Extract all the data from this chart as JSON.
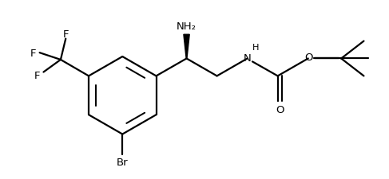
{
  "background_color": "#ffffff",
  "line_color": "#000000",
  "line_width": 1.6,
  "font_size": 9.5,
  "fig_width": 4.87,
  "fig_height": 2.26,
  "dpi": 100,
  "xlim": [
    0,
    9.7
  ],
  "ylim": [
    0,
    4.52
  ]
}
